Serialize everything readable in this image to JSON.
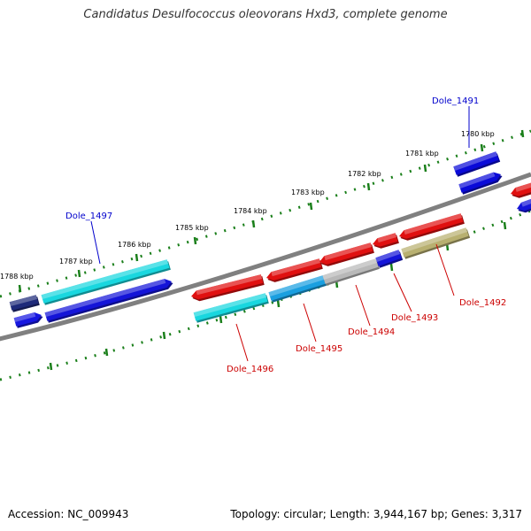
{
  "title": "Candidatus Desulfococcus oleovorans Hxd3, complete genome",
  "footer": {
    "accession": "Accession: NC_009943",
    "stats": "Topology: circular; Length: 3,944,167 bp; Genes: 3,317"
  },
  "colors": {
    "backbone": "#808080",
    "ticks": "#1a7f1a",
    "label_plus": "#0000cc",
    "label_minus": "#cc0000",
    "leader_plus": "#0000cc",
    "leader_minus": "#cc0000"
  },
  "kbp_ticks": [
    "1788 kbp",
    "1787 kbp",
    "1786 kbp",
    "1785 kbp",
    "1784 kbp",
    "1783 kbp",
    "1782 kbp",
    "1781 kbp",
    "1780 kbp"
  ],
  "gene_labels": [
    {
      "text": "Dole_1491",
      "strand": "plus"
    },
    {
      "text": "Dole_1497",
      "strand": "plus"
    },
    {
      "text": "Dole_1492",
      "strand": "minus"
    },
    {
      "text": "Dole_1493",
      "strand": "minus"
    },
    {
      "text": "Dole_1494",
      "strand": "minus"
    },
    {
      "text": "Dole_1495",
      "strand": "minus"
    },
    {
      "text": "Dole_1496",
      "strand": "minus"
    }
  ],
  "features": [
    {
      "name": "plus-gene-far-left",
      "color": "#1e2a7a"
    },
    {
      "name": "plus-gene-dole-1497",
      "color": "#19d7df"
    },
    {
      "name": "plus-gene-dole-1491",
      "color": "#0a0ad8"
    },
    {
      "name": "cds-far-left",
      "color": "#1616e0"
    },
    {
      "name": "cds-dole-1497",
      "color": "#1414d8"
    },
    {
      "name": "cds-dole-1491",
      "color": "#0a0ad8"
    },
    {
      "name": "cds-right-edge",
      "color": "#1414d8"
    },
    {
      "name": "minus-cds-dole-1496",
      "color": "#e01010"
    },
    {
      "name": "minus-cds-dole-1495",
      "color": "#e01010"
    },
    {
      "name": "minus-cds-dole-1494",
      "color": "#e01010"
    },
    {
      "name": "minus-cds-dole-1493",
      "color": "#e01010"
    },
    {
      "name": "minus-cds-dole-1492",
      "color": "#e01010"
    },
    {
      "name": "minus-cds-right-edge",
      "color": "#e01010"
    },
    {
      "name": "minus-gene-dole-1496",
      "color": "#19d7df"
    },
    {
      "name": "minus-gene-dole-1495",
      "color": "#1a9fe0"
    },
    {
      "name": "minus-gene-dole-1494",
      "color": "#b8b8b8"
    },
    {
      "name": "minus-gene-dole-1493",
      "color": "#1414d8"
    },
    {
      "name": "minus-gene-dole-1492",
      "color": "#b8b070"
    }
  ]
}
